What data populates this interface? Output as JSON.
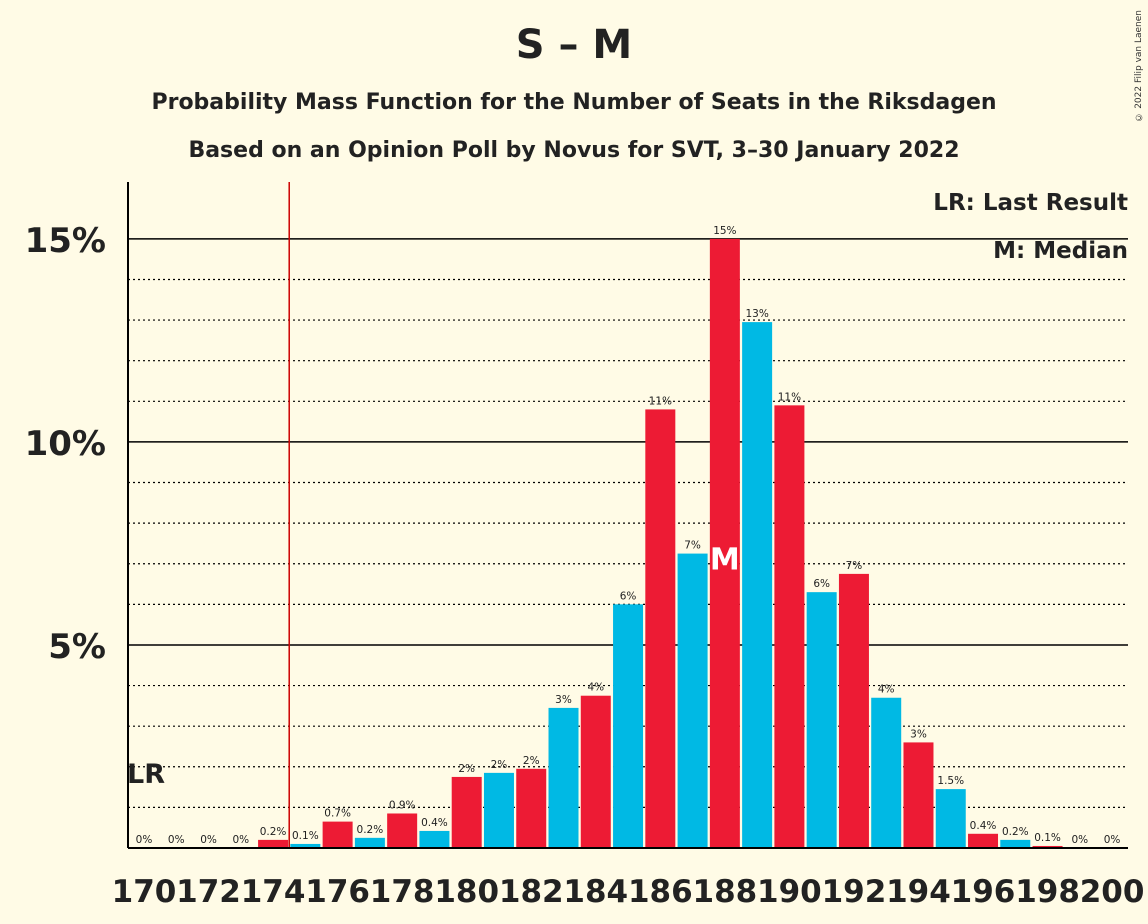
{
  "title": "S – M",
  "subtitle1": "Probability Mass Function for the Number of Seats in the Riksdagen",
  "subtitle2": "Based on an Opinion Poll by Novus for SVT, 3–30 January 2022",
  "copyright": "© 2022 Filip van Laenen",
  "legend": {
    "lr": "LR: Last Result",
    "m": "M: Median"
  },
  "markers": {
    "lr_label": "LR",
    "median_label": "M",
    "last_result_seat": 174,
    "median_seat": 188
  },
  "colors": {
    "background": "#fffbe6",
    "red": "#ed1b34",
    "blue": "#00b9e4",
    "lr_line": "#cc0000"
  },
  "chart_data": {
    "type": "bar",
    "x": [
      170,
      171,
      172,
      173,
      174,
      175,
      176,
      177,
      178,
      179,
      180,
      181,
      182,
      183,
      184,
      185,
      186,
      187,
      188,
      189,
      190,
      191,
      192,
      193,
      194,
      195,
      196,
      197,
      198,
      199,
      200
    ],
    "values": [
      0,
      0,
      0,
      0,
      0.2,
      0.1,
      0.65,
      0.25,
      0.85,
      0.42,
      1.75,
      1.85,
      1.95,
      3.45,
      3.75,
      6.0,
      10.8,
      7.25,
      15.0,
      12.95,
      10.9,
      6.3,
      6.75,
      3.7,
      2.6,
      1.45,
      0.35,
      0.2,
      0.05,
      0,
      0
    ],
    "labels": [
      "0%",
      "0%",
      "0%",
      "0%",
      "0.2%",
      "0.1%",
      "0.7%",
      "0.2%",
      "0.9%",
      "0.4%",
      "2%",
      "2%",
      "2%",
      "3%",
      "4%",
      "6%",
      "11%",
      "7%",
      "15%",
      "13%",
      "11%",
      "6%",
      "7%",
      "4%",
      "3%",
      "1.5%",
      "0.4%",
      "0.2%",
      "0.1%",
      "0%",
      "0%"
    ],
    "xticks": [
      "170",
      "172",
      "174",
      "176",
      "178",
      "180",
      "182",
      "184",
      "186",
      "188",
      "190",
      "192",
      "194",
      "196",
      "198",
      "200"
    ],
    "yticks": [
      {
        "v": 5,
        "label": "5%"
      },
      {
        "v": 10,
        "label": "10%"
      },
      {
        "v": 15,
        "label": "15%"
      }
    ],
    "ylim": [
      0,
      16.4
    ]
  }
}
